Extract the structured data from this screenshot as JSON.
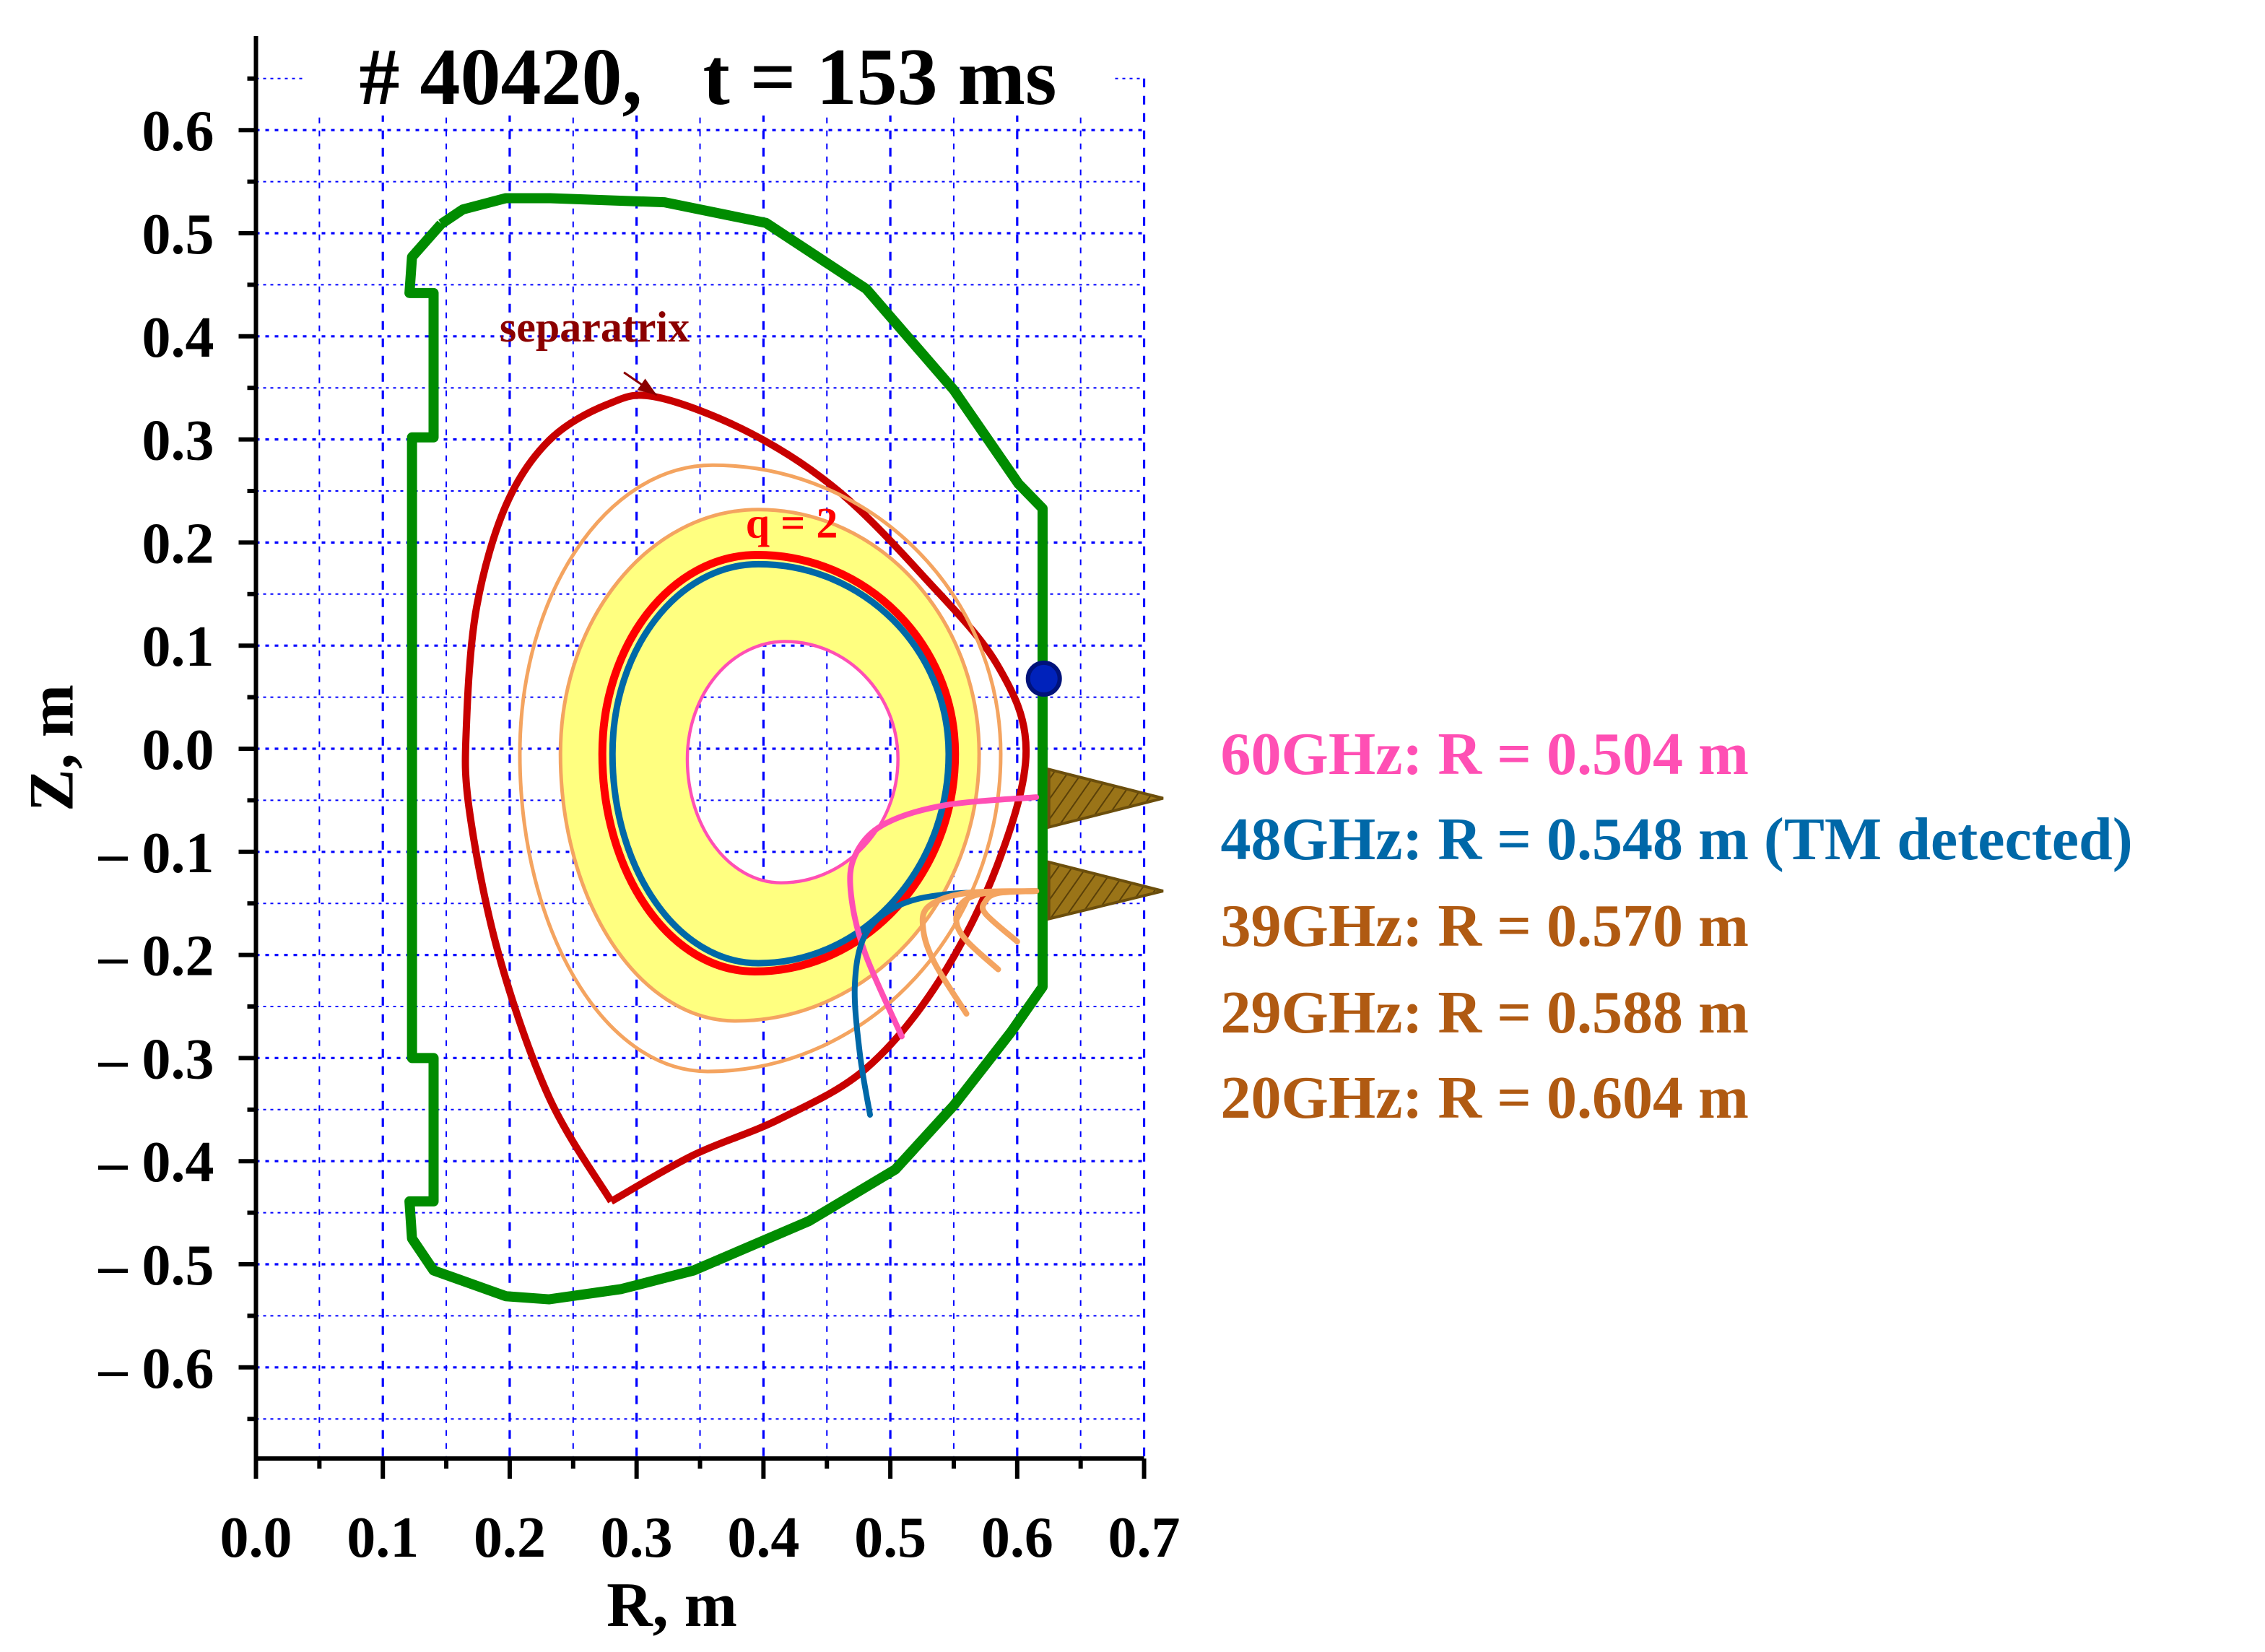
{
  "chart_data": {
    "type": "line",
    "title": "# 40420,   t = 153 ms",
    "xlabel": "R, m",
    "ylabel": "Z, m",
    "xlim": [
      0,
      0.7
    ],
    "ylim": [
      -0.69,
      0.69
    ],
    "grid": true,
    "xticks": [
      0.0,
      0.1,
      0.2,
      0.3,
      0.4,
      0.5,
      0.6,
      0.7
    ],
    "xtick_labels": [
      "0.0",
      "0.1",
      "0.2",
      "0.3",
      "0.4",
      "0.5",
      "0.6",
      "0.7"
    ],
    "yticks": [
      0.6,
      0.5,
      0.4,
      0.3,
      0.2,
      0.1,
      0.0,
      -0.1,
      -0.2,
      -0.3,
      -0.4,
      -0.5,
      -0.6
    ],
    "ytick_labels": [
      "0.6",
      "0.5",
      "0.4",
      "0.3",
      "0.2",
      "0.1",
      "0.0",
      "– 0.1",
      "– 0.2",
      "– 0.3",
      "– 0.4",
      "– 0.5",
      "– 0.6"
    ],
    "colors": {
      "wall": "#008c00",
      "separatrix": "#c80000",
      "q2": "#ff0000",
      "ch60": "#ff4fb4",
      "ch48": "#0068a8",
      "ch_orange": "#f4a460",
      "legend_brown": "#b05a12",
      "fill": "#ffff80",
      "grid": "#0000ff",
      "antenna": "#9a7418",
      "probe": "#0022bb"
    },
    "wall": [
      [
        0.146,
        0.509
      ],
      [
        0.123,
        0.477
      ],
      [
        0.121,
        0.442
      ],
      [
        0.14,
        0.442
      ],
      [
        0.14,
        0.302
      ],
      [
        0.123,
        0.302
      ],
      [
        0.123,
        -0.3
      ],
      [
        0.14,
        -0.3
      ],
      [
        0.14,
        -0.439
      ],
      [
        0.121,
        -0.439
      ],
      [
        0.123,
        -0.475
      ],
      [
        0.14,
        -0.506
      ],
      [
        0.197,
        -0.531
      ],
      [
        0.231,
        -0.534
      ],
      [
        0.288,
        -0.524
      ],
      [
        0.345,
        -0.506
      ],
      [
        0.436,
        -0.458
      ],
      [
        0.504,
        -0.408
      ],
      [
        0.55,
        -0.346
      ],
      [
        0.595,
        -0.275
      ],
      [
        0.62,
        -0.231
      ],
      [
        0.62,
        0.233
      ],
      [
        0.601,
        0.257
      ],
      [
        0.55,
        0.348
      ],
      [
        0.481,
        0.446
      ],
      [
        0.402,
        0.51
      ],
      [
        0.322,
        0.53
      ],
      [
        0.231,
        0.534
      ],
      [
        0.197,
        0.534
      ],
      [
        0.163,
        0.523
      ],
      [
        0.146,
        0.509
      ]
    ],
    "separatrix": [
      [
        0.28,
        -0.439
      ],
      [
        0.231,
        -0.338
      ],
      [
        0.191,
        -0.198
      ],
      [
        0.168,
        -0.058
      ],
      [
        0.166,
        0.026
      ],
      [
        0.174,
        0.138
      ],
      [
        0.197,
        0.236
      ],
      [
        0.231,
        0.299
      ],
      [
        0.277,
        0.334
      ],
      [
        0.316,
        0.341
      ],
      [
        0.39,
        0.306
      ],
      [
        0.459,
        0.25
      ],
      [
        0.527,
        0.166
      ],
      [
        0.584,
        0.082
      ],
      [
        0.607,
        -0.002
      ],
      [
        0.584,
        -0.114
      ],
      [
        0.538,
        -0.226
      ],
      [
        0.481,
        -0.31
      ],
      [
        0.413,
        -0.359
      ],
      [
        0.345,
        -0.394
      ],
      [
        0.28,
        -0.439
      ]
    ],
    "flux_surfaces": [
      {
        "id": "ch29",
        "R_in": 0.208,
        "R_out": 0.587,
        "Z_mid": -0.005,
        "top": [
          0.36,
          0.275
        ],
        "bottom": [
          0.356,
          -0.313
        ],
        "color": "#f4a460"
      },
      {
        "id": "ch39",
        "R_in": 0.24,
        "R_out": 0.57,
        "Z_mid": -0.005,
        "top": [
          0.396,
          0.232
        ],
        "bottom": [
          0.378,
          -0.264
        ],
        "color": "#f4a460"
      },
      {
        "id": "q2",
        "R_in": 0.273,
        "R_out": 0.551,
        "Z_mid": -0.005,
        "top": [
          0.395,
          0.188
        ],
        "bottom": [
          0.393,
          -0.216
        ],
        "color": "#ff0000"
      },
      {
        "id": "ch48",
        "R_in": 0.281,
        "R_out": 0.546,
        "Z_mid": -0.005,
        "top": [
          0.396,
          0.179
        ],
        "bottom": [
          0.396,
          -0.208
        ],
        "color": "#0068a8"
      },
      {
        "id": "ch60",
        "R_in": 0.34,
        "R_out": 0.506,
        "Z_mid": -0.01,
        "top": [
          0.417,
          0.104
        ],
        "bottom": [
          0.414,
          -0.13
        ],
        "color": "#ff4fb4"
      }
    ],
    "rays": [
      {
        "id": "ray-60ghz",
        "color": "#ff4fb4",
        "points": [
          [
            0.615,
            -0.047
          ],
          [
            0.542,
            -0.055
          ],
          [
            0.494,
            -0.074
          ],
          [
            0.472,
            -0.104
          ],
          [
            0.469,
            -0.141
          ],
          [
            0.48,
            -0.198
          ],
          [
            0.509,
            -0.279
          ]
        ]
      },
      {
        "id": "ray-48ghz",
        "color": "#0068a8",
        "points": [
          [
            0.615,
            -0.138
          ],
          [
            0.545,
            -0.141
          ],
          [
            0.505,
            -0.153
          ],
          [
            0.48,
            -0.181
          ],
          [
            0.472,
            -0.23
          ],
          [
            0.476,
            -0.296
          ],
          [
            0.484,
            -0.355
          ]
        ]
      },
      {
        "id": "ray-39ghz",
        "color": "#f4a460",
        "points": [
          [
            0.615,
            -0.138
          ],
          [
            0.56,
            -0.14
          ],
          [
            0.53,
            -0.153
          ],
          [
            0.526,
            -0.176
          ],
          [
            0.535,
            -0.208
          ],
          [
            0.56,
            -0.257
          ]
        ]
      },
      {
        "id": "ray-29ghz",
        "color": "#f4a460",
        "points": [
          [
            0.615,
            -0.138
          ],
          [
            0.575,
            -0.14
          ],
          [
            0.557,
            -0.149
          ],
          [
            0.552,
            -0.167
          ],
          [
            0.56,
            -0.186
          ],
          [
            0.585,
            -0.214
          ]
        ]
      },
      {
        "id": "ray-20ghz",
        "color": "#f4a460",
        "points": [
          [
            0.615,
            -0.138
          ],
          [
            0.585,
            -0.14
          ],
          [
            0.575,
            -0.148
          ],
          [
            0.575,
            -0.16
          ],
          [
            0.6,
            -0.187
          ]
        ]
      }
    ],
    "antennas": [
      [
        [
          0.625,
          -0.02
        ],
        [
          0.715,
          -0.048
        ],
        [
          0.625,
          -0.076
        ]
      ],
      [
        [
          0.625,
          -0.11
        ],
        [
          0.715,
          -0.138
        ],
        [
          0.625,
          -0.165
        ]
      ]
    ],
    "probe": [
      0.621,
      0.068
    ],
    "annotations": {
      "separatrix": {
        "text": "separatrix",
        "at": [
          0.192,
          0.395
        ],
        "arrow_from": [
          0.29,
          0.365
        ],
        "arrow_to": [
          0.316,
          0.343
        ],
        "color": "#8b0000"
      },
      "q2": {
        "text": "q = 2",
        "at": [
          0.386,
          0.205
        ],
        "color": "#ff0000"
      }
    },
    "legend": [
      {
        "text": "60GHz: R = 0.504 m",
        "color": "#ff4fb4"
      },
      {
        "text": "48GHz: R = 0.548 m (TM detected)",
        "color": "#0068a8"
      },
      {
        "text": "39GHz: R = 0.570 m",
        "color": "#b05a12"
      },
      {
        "text": "29GHz: R = 0.588 m",
        "color": "#b05a12"
      },
      {
        "text": "20GHz: R = 0.604 m",
        "color": "#b05a12"
      }
    ]
  }
}
